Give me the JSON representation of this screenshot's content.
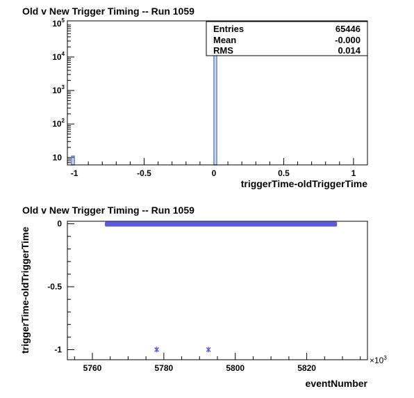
{
  "colors": {
    "histogram_line": "#5b7fc1",
    "scatter_marker": "#5b5be0",
    "frame": "#000000"
  },
  "chart_data": [
    {
      "type": "bar",
      "title": "Old v New Trigger Timing -- Run 1059",
      "xlabel": "triggerTime-oldTriggerTime",
      "ylabel": "",
      "xlim": [
        -1.05,
        1.1
      ],
      "ylim": [
        6,
        120000
      ],
      "log_y": true,
      "x_ticks": [
        "-1",
        "-0.5",
        "0",
        "0.5",
        "1"
      ],
      "x_tick_values": [
        -1,
        -0.5,
        0,
        0.5,
        1
      ],
      "y_ticks": [
        "10",
        "10",
        "10",
        "10",
        "10"
      ],
      "y_tick_exponents": [
        "",
        "2",
        "3",
        "4",
        "5"
      ],
      "y_tick_values": [
        10,
        100,
        1000,
        10000,
        100000
      ],
      "bin_width": 0.02,
      "bins": [
        {
          "x_low": -1.02,
          "x_high": -1.0,
          "count": 11
        },
        {
          "x_low": 0.0,
          "x_high": 0.02,
          "count": 65424
        }
      ],
      "stats": [
        {
          "label": "Entries",
          "value": "65446"
        },
        {
          "label": "Mean",
          "value": "-0.000"
        },
        {
          "label": "RMS",
          "value": "0.014"
        }
      ],
      "grid": false
    },
    {
      "type": "scatter",
      "title": "Old v New Trigger Timing -- Run 1059",
      "xlabel": "eventNumber",
      "ylabel": "triggerTime-oldTriggerTime",
      "xlim": [
        5753,
        5837
      ],
      "ylim": [
        -1.08,
        0.02
      ],
      "x_ticks": [
        "5760",
        "5780",
        "5800",
        "5820"
      ],
      "x_tick_values": [
        5760,
        5780,
        5800,
        5820
      ],
      "x_multiplier": "×10",
      "x_multiplier_exponent": "3",
      "y_ticks": [
        "0",
        "-0.5",
        "-1"
      ],
      "y_tick_values": [
        0,
        -0.5,
        -1
      ],
      "band": {
        "x_start": 5763.5,
        "x_end": 5828.5,
        "y": 0
      },
      "points": [
        {
          "x": 5778,
          "y": -1
        },
        {
          "x": 5792.5,
          "y": -1
        }
      ],
      "grid": false
    }
  ]
}
